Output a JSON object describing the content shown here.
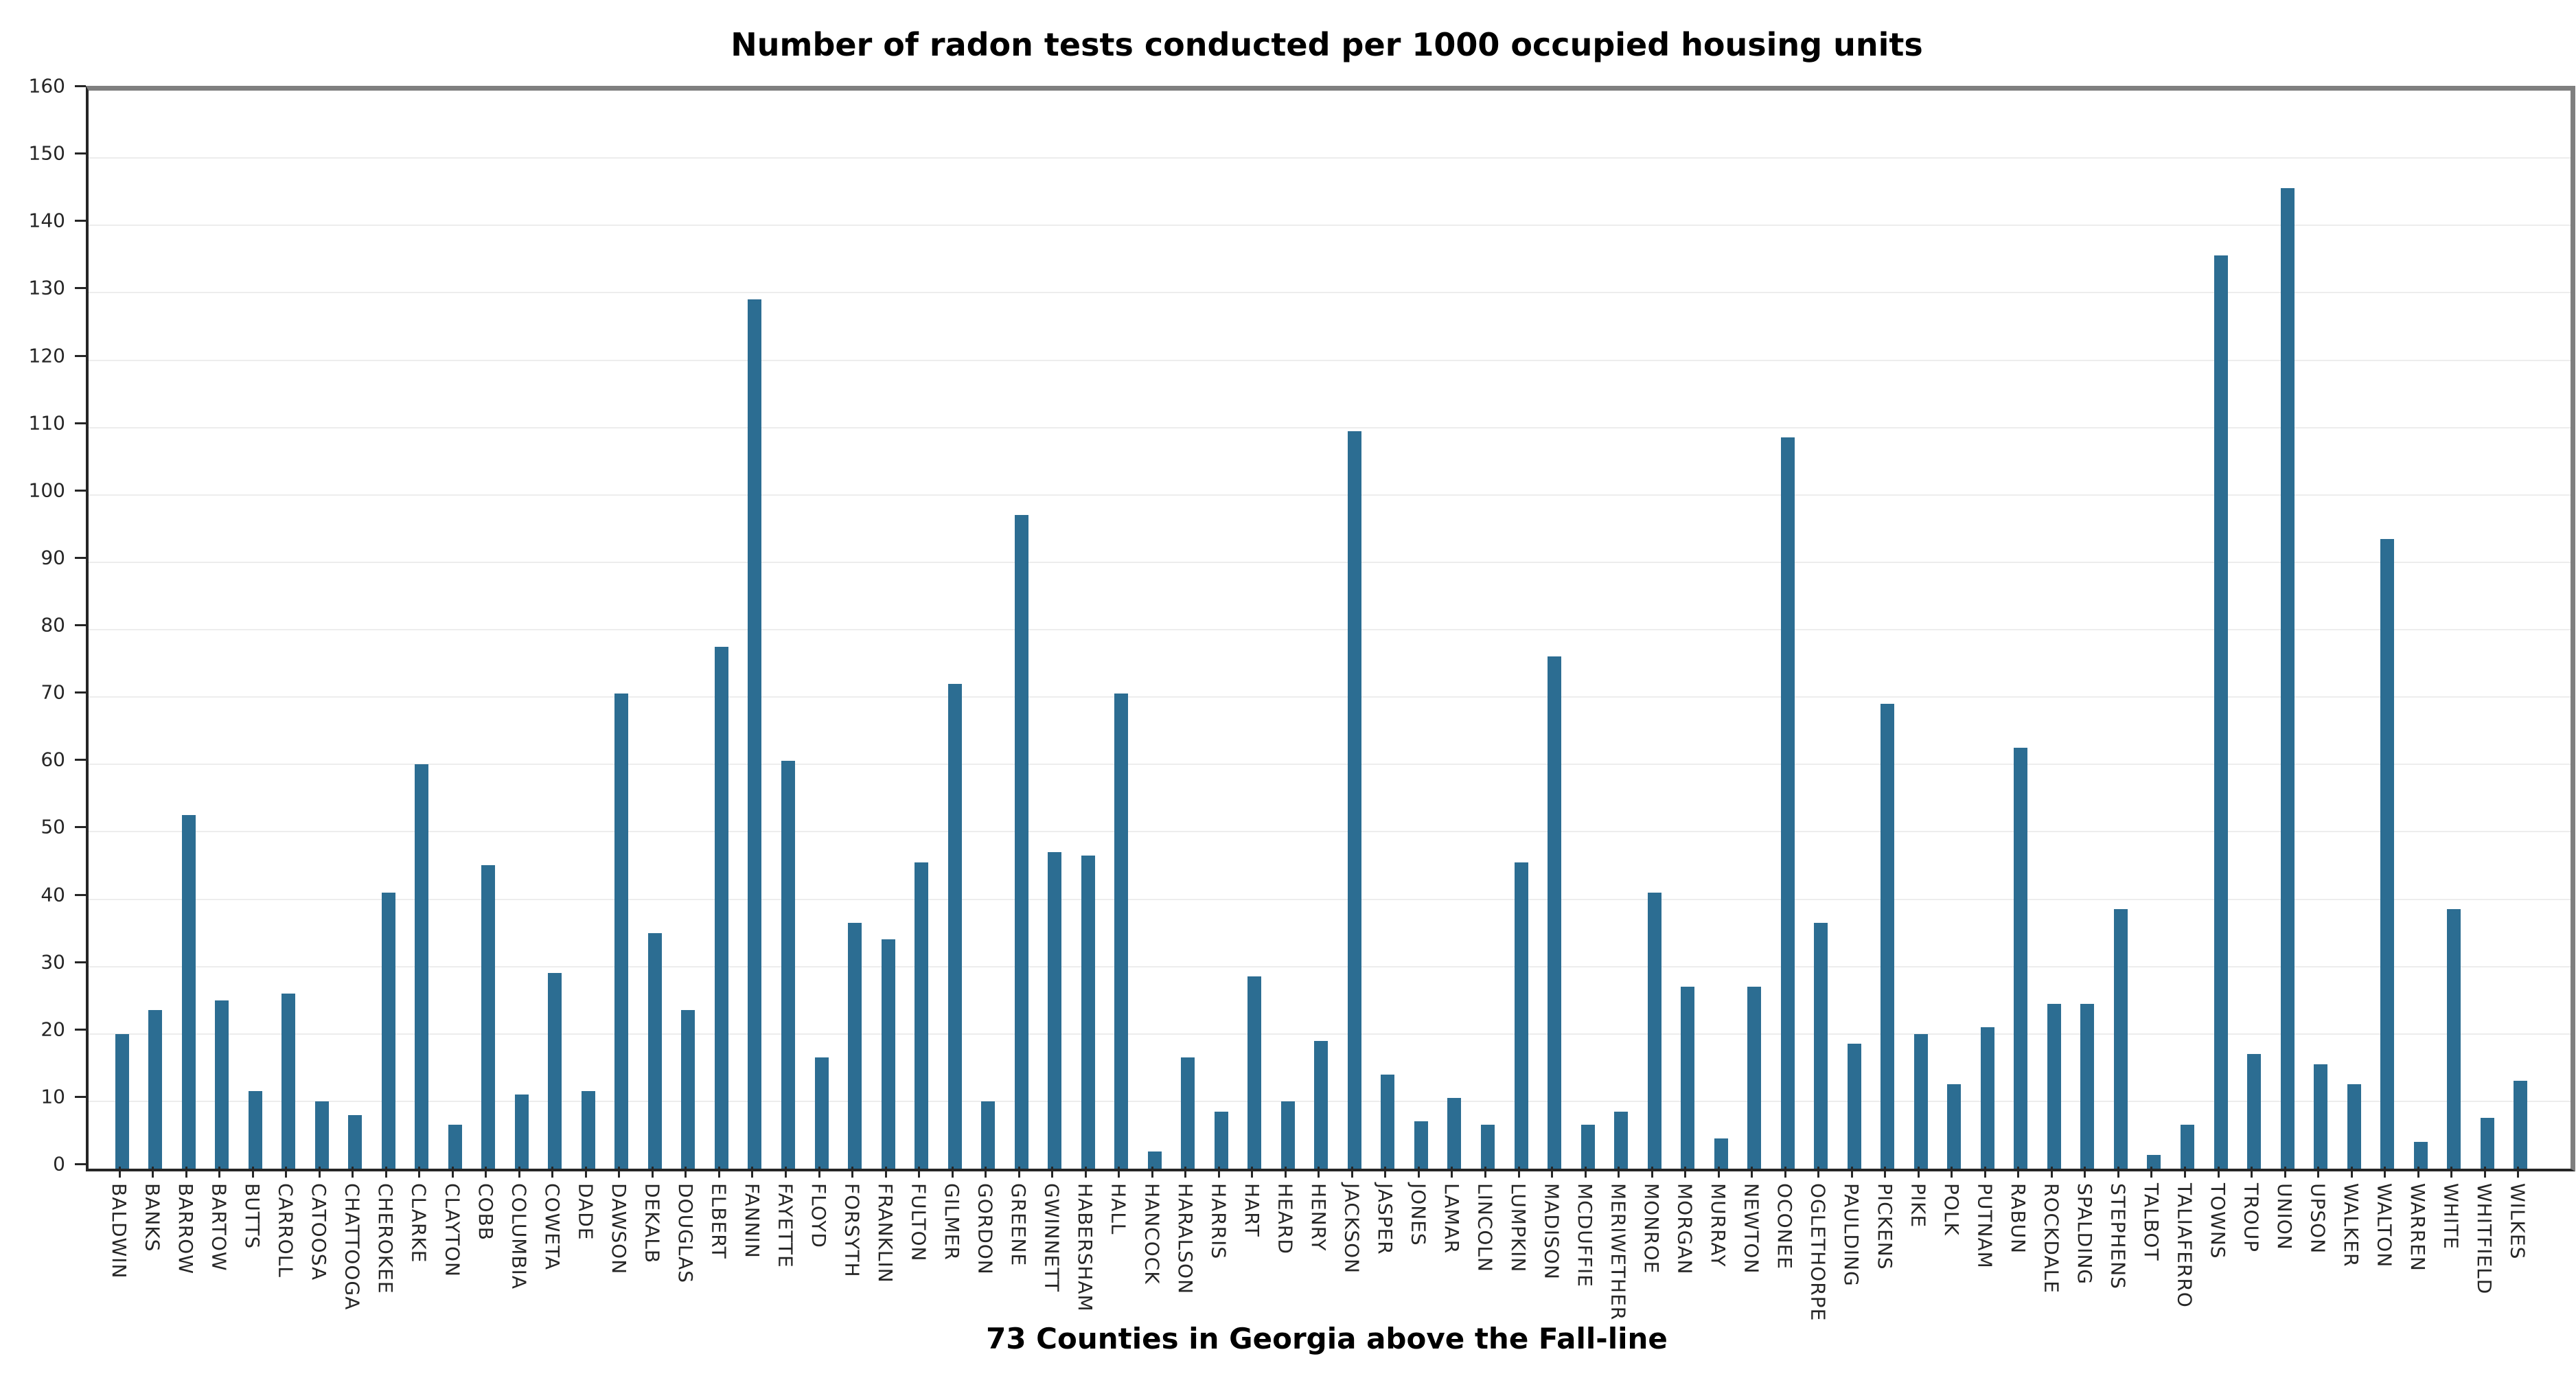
{
  "chart_data": {
    "type": "bar",
    "title": "Number of radon tests conducted per 1000 occupied housing units",
    "xlabel": "73 Counties in Georgia above the Fall-line",
    "ylabel": "",
    "ylim": [
      0,
      160
    ],
    "ytick_step": 10,
    "yticks": [
      0,
      10,
      20,
      30,
      40,
      50,
      60,
      70,
      80,
      90,
      100,
      110,
      120,
      130,
      140,
      150,
      160
    ],
    "grid": true,
    "legend": "none",
    "bar_color": "#2c6d92",
    "categories": [
      "BALDWIN",
      "BANKS",
      "BARROW",
      "BARTOW",
      "BUTTS",
      "CARROLL",
      "CATOOSA",
      "CHATTOOGA",
      "CHEROKEE",
      "CLARKE",
      "CLAYTON",
      "COBB",
      "COLUMBIA",
      "COWETA",
      "DADE",
      "DAWSON",
      "DEKALB",
      "DOUGLAS",
      "ELBERT",
      "FANNIN",
      "FAYETTE",
      "FLOYD",
      "FORSYTH",
      "FRANKLIN",
      "FULTON",
      "GILMER",
      "GORDON",
      "GREENE",
      "GWINNETT",
      "HABERSHAM",
      "HALL",
      "HANCOCK",
      "HARALSON",
      "HARRIS",
      "HART",
      "HEARD",
      "HENRY",
      "JACKSON",
      "JASPER",
      "JONES",
      "LAMAR",
      "LINCOLN",
      "LUMPKIN",
      "MADISON",
      "MCDUFFIE",
      "MERIWETHER",
      "MONROE",
      "MORGAN",
      "MURRAY",
      "NEWTON",
      "OCONEE",
      "OGLETHORPE",
      "PAULDING",
      "PICKENS",
      "PIKE",
      "POLK",
      "PUTNAM",
      "RABUN",
      "ROCKDALE",
      "SPALDING",
      "STEPHENS",
      "TALBOT",
      "TALIAFERRO",
      "TOWNS",
      "TROUP",
      "UNION",
      "UPSON",
      "WALKER",
      "WALTON",
      "WARREN",
      "WHITE",
      "WHITFIELD",
      "WILKES"
    ],
    "values": [
      20,
      23.5,
      52.5,
      25,
      11.5,
      26,
      10,
      8,
      41,
      60,
      6.5,
      45,
      11,
      29,
      11.5,
      70.5,
      35,
      23.5,
      77.5,
      129,
      60.5,
      16.5,
      36.5,
      34,
      45.5,
      72,
      10,
      97,
      47,
      46.5,
      70.5,
      2.5,
      16.5,
      8.5,
      28.5,
      10,
      19,
      109.5,
      14,
      7,
      10.5,
      6.5,
      45.5,
      76,
      6.5,
      8.5,
      41,
      27,
      4.5,
      27,
      108.5,
      36.5,
      18.5,
      69,
      20,
      12.5,
      21,
      62.5,
      24.5,
      24.5,
      38.5,
      2,
      6.5,
      135.5,
      17,
      145.5,
      15.5,
      12.5,
      93.5,
      4,
      38.5,
      7.5,
      13
    ]
  }
}
